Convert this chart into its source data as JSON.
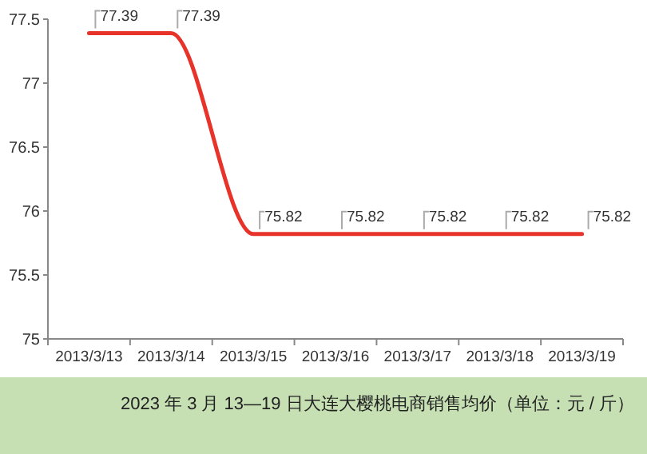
{
  "chart_data": {
    "type": "line",
    "title": "2023 年 3 月 13—19 日大连大樱桃电商销售均价（单位：元 / 斤）",
    "categories": [
      "2013/3/13",
      "2013/3/14",
      "2013/3/15",
      "2013/3/16",
      "2013/3/17",
      "2013/3/18",
      "2013/3/19"
    ],
    "series": [
      {
        "color": "#e8332a",
        "values": [
          77.39,
          77.39,
          75.82,
          75.82,
          75.82,
          75.82,
          75.82
        ]
      }
    ],
    "ylim": [
      75,
      77.5
    ],
    "yticks": [
      75,
      75.5,
      76,
      76.5,
      77,
      77.5
    ],
    "data_labels": true,
    "grid": false,
    "marker": "none"
  }
}
